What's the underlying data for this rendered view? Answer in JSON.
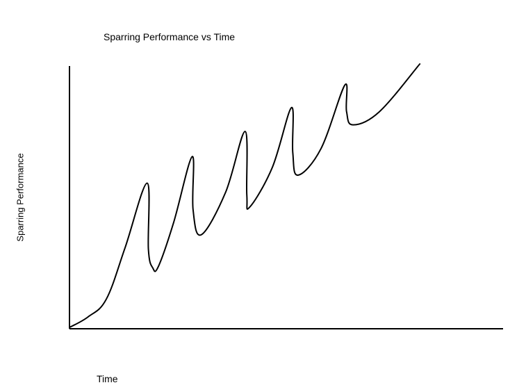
{
  "chart_data": {
    "type": "line",
    "title": "Sparring Performance vs Time",
    "xlabel": "Time",
    "ylabel": "Sparring Performance",
    "x_ticks": false,
    "y_ticks": false,
    "grid": false,
    "legend": "none",
    "xlim": [
      0,
      100
    ],
    "ylim": [
      0,
      100
    ],
    "series": [
      {
        "color": "#000000",
        "points": [
          [
            0,
            0.5
          ],
          [
            4.3,
            4.5
          ],
          [
            8.5,
            11.2
          ],
          [
            12.8,
            30.5
          ],
          [
            17.9,
            55.0
          ],
          [
            18.2,
            30.0
          ],
          [
            19.2,
            23.0
          ],
          [
            20.5,
            23.5
          ],
          [
            24.0,
            40.0
          ],
          [
            28.3,
            65.0
          ],
          [
            28.5,
            45.0
          ],
          [
            30.4,
            35.5
          ],
          [
            36.0,
            51.5
          ],
          [
            40.5,
            74.5
          ],
          [
            40.9,
            50.5
          ],
          [
            41.6,
            46.0
          ],
          [
            46.8,
            61.0
          ],
          [
            51.2,
            83.5
          ],
          [
            51.5,
            66.5
          ],
          [
            52.7,
            58.0
          ],
          [
            58.0,
            68.0
          ],
          [
            63.5,
            92.0
          ],
          [
            63.9,
            82.0
          ],
          [
            65.4,
            77.0
          ],
          [
            71.5,
            82.0
          ],
          [
            80.8,
            100.0
          ]
        ]
      }
    ]
  }
}
